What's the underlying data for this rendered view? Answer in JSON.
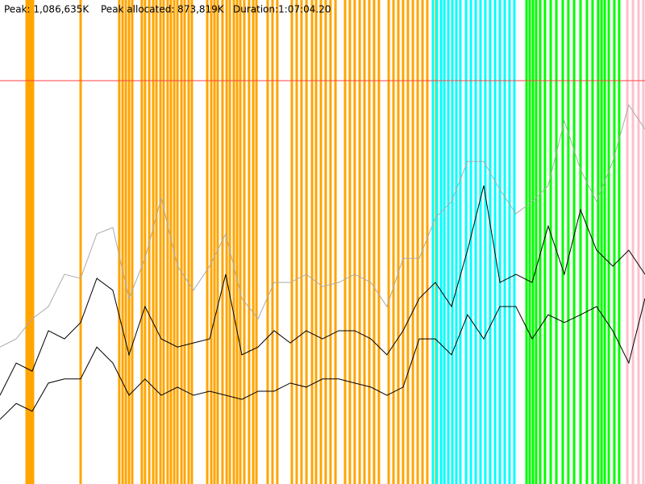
{
  "header": {
    "peak": "Peak: 1,086,635K",
    "peak_allocated": "Peak allocated: 873,819K",
    "duration": "Duration:1:07:04.20"
  },
  "chart_data": {
    "type": "line",
    "xlim": [
      0,
      4024.2
    ],
    "ylim": [
      0,
      1304000
    ],
    "peak_line": 1086635,
    "peak_color": "#ff4040",
    "x": [
      0,
      101,
      201,
      302,
      402,
      503,
      604,
      704,
      805,
      905,
      1006,
      1107,
      1207,
      1308,
      1408,
      1509,
      1610,
      1710,
      1811,
      1911,
      2012,
      2113,
      2213,
      2314,
      2414,
      2515,
      2616,
      2716,
      2817,
      2917,
      3018,
      3119,
      3219,
      3320,
      3420,
      3521,
      3622,
      3722,
      3823,
      3923,
      4024
    ],
    "series": [
      {
        "color": "#aaaaaa",
        "values": [
          369000,
          391000,
          445000,
          478000,
          565000,
          554000,
          674000,
          691000,
          500000,
          608000,
          771000,
          587000,
          522000,
          587000,
          674000,
          500000,
          445000,
          543000,
          543000,
          565000,
          532000,
          543000,
          565000,
          543000,
          478000,
          608000,
          608000,
          717000,
          761000,
          869000,
          869000,
          793000,
          728000,
          761000,
          804000,
          978000,
          847000,
          761000,
          869000,
          1021000,
          956000
        ]
      },
      {
        "color": "#000000",
        "values": [
          239000,
          326000,
          304000,
          413000,
          391000,
          435000,
          554000,
          522000,
          348000,
          478000,
          391000,
          369000,
          380000,
          391000,
          565000,
          348000,
          369000,
          413000,
          380000,
          413000,
          391000,
          413000,
          413000,
          391000,
          348000,
          413000,
          500000,
          543000,
          478000,
          630000,
          804000,
          543000,
          565000,
          543000,
          695000,
          565000,
          739000,
          630000,
          587000,
          630000,
          565000
        ]
      },
      {
        "color": "#000000",
        "values": [
          174000,
          217000,
          196000,
          272000,
          283000,
          283000,
          369000,
          326000,
          239000,
          283000,
          239000,
          261000,
          239000,
          250000,
          239000,
          228000,
          250000,
          250000,
          272000,
          261000,
          283000,
          283000,
          272000,
          261000,
          239000,
          261000,
          391000,
          391000,
          348000,
          456000,
          391000,
          478000,
          478000,
          391000,
          456000,
          435000,
          456000,
          478000,
          413000,
          326000,
          500000
        ]
      }
    ],
    "event_bands": [
      {
        "color": "#ffa500",
        "x": [
          166,
          181,
          196,
          206,
          503,
          744,
          765,
          785,
          805,
          825,
          885,
          905,
          931,
          956,
          976,
          1001,
          1021,
          1046,
          1066,
          1087,
          1107,
          1132,
          1152,
          1177,
          1197,
          1293,
          1318,
          1338,
          1358,
          1388,
          1414,
          1434,
          1459,
          1479,
          1499,
          1524,
          1554,
          1580,
          1600,
          1670,
          1700,
          1730,
          1821,
          1851,
          1881,
          1912,
          1947,
          1972,
          2002,
          2032,
          2062,
          2093,
          2153,
          2183,
          2213,
          2244,
          2274,
          2304,
          2334,
          2364,
          2425,
          2455,
          2485,
          2515,
          2545,
          2576,
          2606,
          2636,
          2666,
          2721
        ]
      },
      {
        "color": "#00ffff",
        "x": [
          2701,
          2726,
          2752,
          2772,
          2797,
          2822,
          2847,
          2872,
          2908,
          2938,
          2968,
          2998,
          3028,
          3058,
          3089,
          3119,
          3149,
          3179,
          3209
        ]
      },
      {
        "color": "#00ff00",
        "x": [
          3285,
          3305,
          3325,
          3345,
          3370,
          3400,
          3436,
          3471,
          3511,
          3546,
          3582,
          3622,
          3662,
          3697,
          3732,
          3753,
          3773,
          3798,
          3833,
          3863
        ]
      },
      {
        "color": "#ffc0cb",
        "x": [
          3914,
          3949,
          3984,
          4014
        ]
      }
    ]
  }
}
